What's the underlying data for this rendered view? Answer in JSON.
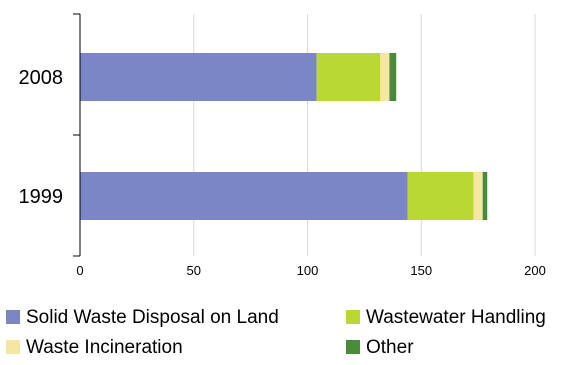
{
  "chart_data": {
    "type": "bar",
    "orientation": "horizontal",
    "stacked": true,
    "categories": [
      "2008",
      "1999"
    ],
    "series": [
      {
        "name": "Solid Waste Disposal on Land",
        "color": "#7b86c6",
        "values": [
          104,
          144
        ]
      },
      {
        "name": "Wastewater Handling",
        "color": "#b9d833",
        "values": [
          28,
          29
        ]
      },
      {
        "name": "Waste Incineration",
        "color": "#f5e7a3",
        "values": [
          4,
          4
        ]
      },
      {
        "name": "Other",
        "color": "#4a8b3b",
        "values": [
          3,
          2
        ]
      }
    ],
    "xlim": [
      0,
      200
    ],
    "xticks": [
      0,
      50,
      100,
      150,
      200
    ],
    "grid": "vertical",
    "legend": "bottom",
    "title": "",
    "xlabel": "",
    "ylabel": ""
  }
}
